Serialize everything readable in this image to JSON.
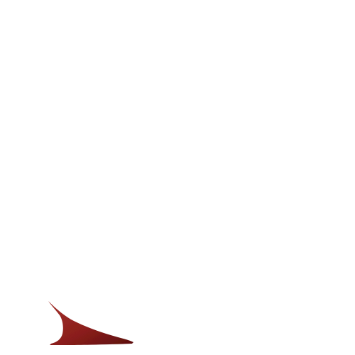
{
  "scene": {
    "background_color": "#ffffff",
    "object": {
      "name": "dark-red-curved-fin-shape",
      "fill_color": "#8f1f1c",
      "shadow_color": "#5e0f0e",
      "highlight_color": "#a8322c"
    }
  }
}
